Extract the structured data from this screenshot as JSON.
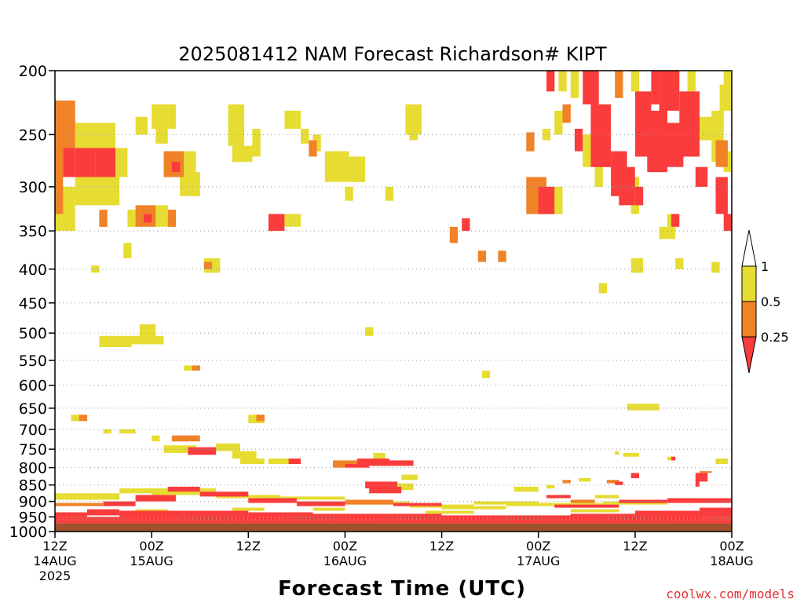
{
  "chart_data": {
    "type": "heatmap",
    "title": "2025081412 NAM Forecast Richardson# KIPT",
    "xlabel": "Forecast Time (UTC)",
    "ylabel": "",
    "y_scale": "log",
    "y_reversed": true,
    "y_ticks": [
      200,
      250,
      300,
      350,
      400,
      450,
      500,
      550,
      600,
      650,
      700,
      750,
      800,
      850,
      900,
      950,
      1000
    ],
    "y_gridlines_dotted": true,
    "x_ticks": [
      {
        "hour": 0,
        "line1": "12Z",
        "line2": "14AUG",
        "line3": "2025"
      },
      {
        "hour": 12,
        "line1": "00Z",
        "line2": "15AUG",
        "line3": ""
      },
      {
        "hour": 24,
        "line1": "12Z",
        "line2": "",
        "line3": ""
      },
      {
        "hour": 36,
        "line1": "00Z",
        "line2": "16AUG",
        "line3": ""
      },
      {
        "hour": 48,
        "line1": "12Z",
        "line2": "",
        "line3": ""
      },
      {
        "hour": 60,
        "line1": "00Z",
        "line2": "17AUG",
        "line3": ""
      },
      {
        "hour": 72,
        "line1": "12Z",
        "line2": "",
        "line3": ""
      },
      {
        "hour": 84,
        "line1": "00Z",
        "line2": "18AUG",
        "line3": ""
      }
    ],
    "xlim_hours": [
      0,
      84
    ],
    "ylim": [
      200,
      1000
    ],
    "legend": {
      "placement": "right",
      "levels": [
        {
          "label": "1",
          "value": 1,
          "color": "#ffffff"
        },
        {
          "label": "0.5",
          "value": 0.5,
          "color": "#e6dc32"
        },
        {
          "label": "0.25",
          "value": 0.25,
          "color": "#f08228"
        },
        {
          "label": "",
          "value": 0,
          "color": "#fa3c3c"
        }
      ]
    },
    "colors": {
      "low": "#fa3c3c",
      "mid": "#f08228",
      "high": "#e6dc32",
      "ground": "#a0522d"
    },
    "ground_band_p": [
      972,
      1000
    ],
    "cells_note_format": "[start_hour, end_hour, top_pressure_hPa, bottom_pressure_hPa, class] class: 1=Ri<0.25, 2=0.25-0.5, 3=0.5-1",
    "cells": [
      [
        0,
        2.5,
        222,
        262,
        2
      ],
      [
        0,
        1,
        262,
        330,
        2
      ],
      [
        1,
        2.5,
        262,
        290,
        1
      ],
      [
        2.5,
        5,
        262,
        290,
        1
      ],
      [
        5,
        7.5,
        262,
        290,
        1
      ],
      [
        2.5,
        7.5,
        240,
        262,
        3
      ],
      [
        2.5,
        8,
        290,
        320,
        3
      ],
      [
        0,
        2.5,
        300,
        350,
        3
      ],
      [
        7.5,
        9,
        262,
        290,
        3
      ],
      [
        0.5,
        2,
        230,
        250,
        3
      ],
      [
        5.5,
        6.5,
        325,
        345,
        2
      ],
      [
        8.5,
        9.5,
        365,
        385,
        3
      ],
      [
        4.5,
        5.5,
        395,
        405,
        3
      ],
      [
        9,
        10,
        325,
        345,
        3
      ],
      [
        10,
        12.5,
        320,
        345,
        2
      ],
      [
        11,
        12,
        330,
        340,
        1
      ],
      [
        12.5,
        14,
        320,
        345,
        3
      ],
      [
        14,
        15,
        325,
        345,
        2
      ],
      [
        12,
        13.5,
        225,
        245,
        3
      ],
      [
        13.5,
        15,
        225,
        245,
        3
      ],
      [
        10,
        11.5,
        235,
        250,
        3
      ],
      [
        12.5,
        14,
        245,
        258,
        3
      ],
      [
        13.5,
        16,
        265,
        290,
        2
      ],
      [
        14.5,
        15.5,
        275,
        285,
        1
      ],
      [
        16,
        17.5,
        265,
        290,
        3
      ],
      [
        17,
        18,
        285,
        310,
        3
      ],
      [
        15.5,
        17,
        290,
        310,
        3
      ],
      [
        21.5,
        23.5,
        225,
        260,
        3
      ],
      [
        22,
        24.5,
        260,
        275,
        3
      ],
      [
        24.5,
        25.5,
        245,
        270,
        3
      ],
      [
        28.5,
        30.5,
        230,
        245,
        3
      ],
      [
        30.5,
        31.5,
        245,
        258,
        3
      ],
      [
        31.5,
        32.5,
        255,
        270,
        2
      ],
      [
        32,
        33,
        250,
        265,
        3
      ],
      [
        26.5,
        28.5,
        330,
        350,
        1
      ],
      [
        28.5,
        29.5,
        330,
        345,
        3
      ],
      [
        29.5,
        30.5,
        330,
        345,
        3
      ],
      [
        18.5,
        20.5,
        385,
        405,
        3
      ],
      [
        18.5,
        19.5,
        390,
        400,
        2
      ],
      [
        33.5,
        36.5,
        265,
        295,
        3
      ],
      [
        36.5,
        38.5,
        270,
        295,
        3
      ],
      [
        36,
        37,
        300,
        315,
        3
      ],
      [
        41,
        42,
        300,
        315,
        3
      ],
      [
        43.5,
        45.5,
        225,
        250,
        3
      ],
      [
        44,
        45,
        240,
        255,
        3
      ],
      [
        49,
        50,
        345,
        365,
        2
      ],
      [
        50.5,
        51.5,
        335,
        350,
        1
      ],
      [
        5.5,
        9.5,
        505,
        525,
        3
      ],
      [
        9.5,
        13.5,
        505,
        520,
        3
      ],
      [
        10.5,
        12.5,
        485,
        510,
        3
      ],
      [
        16,
        18,
        560,
        570,
        3
      ],
      [
        17,
        18,
        560,
        570,
        2
      ],
      [
        38.5,
        39.5,
        490,
        505,
        3
      ],
      [
        2,
        3,
        665,
        680,
        3
      ],
      [
        3,
        4,
        665,
        680,
        2
      ],
      [
        6,
        7,
        700,
        710,
        3
      ],
      [
        8,
        10,
        700,
        710,
        3
      ],
      [
        12,
        13,
        715,
        730,
        3
      ],
      [
        14.5,
        18,
        715,
        730,
        2
      ],
      [
        13.5,
        17.5,
        740,
        760,
        3
      ],
      [
        16.5,
        20,
        745,
        765,
        1
      ],
      [
        20,
        23,
        735,
        755,
        3
      ],
      [
        22,
        25,
        755,
        775,
        3
      ],
      [
        23,
        26,
        775,
        790,
        3
      ],
      [
        26.5,
        30,
        775,
        790,
        3
      ],
      [
        29,
        30.5,
        775,
        790,
        1
      ],
      [
        24,
        26,
        665,
        685,
        3
      ],
      [
        25,
        26,
        665,
        680,
        2
      ],
      [
        34.5,
        38.5,
        780,
        800,
        2
      ],
      [
        36,
        39,
        790,
        800,
        1
      ],
      [
        37.5,
        41.5,
        775,
        795,
        1
      ],
      [
        39.5,
        41,
        760,
        775,
        3
      ],
      [
        40.5,
        44.5,
        780,
        795,
        1
      ],
      [
        38.5,
        42.5,
        840,
        860,
        1
      ],
      [
        39,
        43,
        855,
        875,
        1
      ],
      [
        42.5,
        44.5,
        845,
        865,
        3
      ],
      [
        43,
        45,
        820,
        835,
        3
      ],
      [
        55,
        56,
        375,
        390,
        2
      ],
      [
        58.5,
        61,
        290,
        330,
        2
      ],
      [
        60,
        62,
        300,
        330,
        1
      ],
      [
        61.5,
        63,
        300,
        330,
        3
      ],
      [
        58.5,
        59.5,
        248,
        265,
        2
      ],
      [
        60.5,
        61.5,
        245,
        255,
        3
      ],
      [
        62,
        63,
        230,
        250,
        3
      ],
      [
        61,
        62,
        200,
        215,
        1
      ],
      [
        62.5,
        63.5,
        200,
        215,
        3
      ],
      [
        64,
        65,
        200,
        220,
        3
      ],
      [
        63,
        64,
        225,
        240,
        2
      ],
      [
        64.5,
        65.5,
        245,
        265,
        1
      ],
      [
        65.5,
        66.5,
        250,
        280,
        3
      ],
      [
        65.5,
        67.5,
        200,
        225,
        1
      ],
      [
        66.5,
        69,
        225,
        280,
        1
      ],
      [
        67,
        69,
        240,
        275,
        1
      ],
      [
        67,
        68,
        280,
        300,
        3
      ],
      [
        69,
        71,
        265,
        310,
        1
      ],
      [
        70,
        72,
        280,
        320,
        1
      ],
      [
        72,
        73,
        300,
        320,
        1
      ],
      [
        71.5,
        72.5,
        290,
        330,
        3
      ],
      [
        69.5,
        70.5,
        200,
        220,
        2
      ],
      [
        71.5,
        72.5,
        200,
        215,
        3
      ],
      [
        72,
        74,
        215,
        270,
        1
      ],
      [
        73.5,
        76,
        230,
        285,
        1
      ],
      [
        74,
        75,
        200,
        225,
        1
      ],
      [
        75,
        77.5,
        200,
        230,
        1
      ],
      [
        76,
        77,
        245,
        265,
        2
      ],
      [
        76,
        78,
        240,
        280,
        1
      ],
      [
        77.5,
        80,
        215,
        270,
        1
      ],
      [
        78.5,
        79.5,
        200,
        215,
        3
      ],
      [
        80,
        81,
        235,
        255,
        3
      ],
      [
        79.5,
        81,
        280,
        300,
        1
      ],
      [
        82,
        83.5,
        290,
        330,
        1
      ],
      [
        81.5,
        83,
        230,
        250,
        3
      ],
      [
        82,
        83.5,
        255,
        280,
        2
      ],
      [
        83,
        84,
        265,
        285,
        3
      ],
      [
        83,
        84,
        330,
        350,
        1
      ],
      [
        81.5,
        83,
        230,
        275,
        3
      ],
      [
        82.5,
        84,
        210,
        230,
        3
      ],
      [
        83,
        84,
        200,
        210,
        3
      ],
      [
        81,
        82,
        235,
        255,
        3
      ],
      [
        81.5,
        82.5,
        390,
        405,
        3
      ],
      [
        76,
        77,
        330,
        345,
        3
      ],
      [
        76.5,
        77.5,
        330,
        345,
        1
      ],
      [
        77,
        78,
        385,
        400,
        3
      ],
      [
        71.5,
        73,
        385,
        405,
        3
      ],
      [
        67.5,
        68.5,
        420,
        435,
        3
      ],
      [
        75,
        77,
        345,
        360,
        3
      ],
      [
        71,
        75,
        640,
        655,
        3
      ],
      [
        53,
        54,
        570,
        585,
        3
      ],
      [
        52.5,
        53.5,
        375,
        390,
        2
      ],
      [
        63,
        64,
        835,
        845,
        2
      ],
      [
        65,
        66.5,
        830,
        840,
        3
      ],
      [
        68.5,
        70,
        835,
        845,
        2
      ],
      [
        71.5,
        72.5,
        815,
        830,
        1
      ],
      [
        69.5,
        70.5,
        840,
        850,
        1
      ],
      [
        79.5,
        81,
        815,
        840,
        1
      ],
      [
        80.5,
        81,
        820,
        830,
        2
      ],
      [
        79.5,
        80,
        835,
        855,
        1
      ],
      [
        80,
        81.5,
        810,
        815,
        2
      ],
      [
        82,
        83.5,
        775,
        790,
        3
      ],
      [
        76,
        77,
        770,
        780,
        3
      ],
      [
        76.5,
        77,
        770,
        780,
        1
      ],
      [
        71.5,
        72.5,
        760,
        770,
        3
      ],
      [
        69.5,
        70,
        755,
        765,
        3
      ],
      [
        70.5,
        71.5,
        760,
        770,
        3
      ],
      [
        57,
        60,
        855,
        870,
        3
      ],
      [
        58,
        60,
        860,
        870,
        3
      ],
      [
        61,
        62,
        850,
        860,
        3
      ],
      [
        61,
        64,
        880,
        890,
        1
      ],
      [
        64,
        67,
        895,
        905,
        2
      ],
      [
        67,
        70,
        880,
        890,
        3
      ],
      [
        0,
        84,
        960,
        972,
        1
      ],
      [
        0,
        84,
        950,
        960,
        1
      ],
      [
        0,
        4,
        935,
        950,
        1
      ],
      [
        4,
        8,
        925,
        945,
        1
      ],
      [
        8,
        16,
        930,
        955,
        1
      ],
      [
        16,
        24,
        930,
        955,
        1
      ],
      [
        24,
        32,
        935,
        955,
        1
      ],
      [
        32,
        40,
        940,
        955,
        1
      ],
      [
        40,
        48,
        940,
        960,
        1
      ],
      [
        48,
        56,
        945,
        960,
        1
      ],
      [
        56,
        64,
        945,
        960,
        1
      ],
      [
        64,
        72,
        940,
        960,
        1
      ],
      [
        72,
        80,
        930,
        955,
        1
      ],
      [
        80,
        84,
        920,
        950,
        1
      ],
      [
        0,
        6,
        905,
        915,
        2
      ],
      [
        6,
        10,
        900,
        915,
        1
      ],
      [
        10,
        15,
        880,
        900,
        1
      ],
      [
        14,
        18,
        855,
        870,
        1
      ],
      [
        18,
        24,
        870,
        885,
        1
      ],
      [
        24,
        30,
        890,
        905,
        1
      ],
      [
        30,
        36,
        900,
        915,
        1
      ],
      [
        36,
        42,
        895,
        910,
        2
      ],
      [
        42,
        48,
        905,
        915,
        1
      ],
      [
        48,
        56,
        915,
        925,
        3
      ],
      [
        56,
        62,
        905,
        915,
        3
      ],
      [
        62,
        70,
        910,
        920,
        1
      ],
      [
        70,
        76,
        895,
        905,
        1
      ],
      [
        76,
        84,
        890,
        905,
        1
      ],
      [
        0,
        8,
        875,
        895,
        3
      ],
      [
        8,
        12,
        860,
        875,
        3
      ],
      [
        12,
        20,
        860,
        880,
        3
      ],
      [
        20,
        28,
        880,
        890,
        3
      ],
      [
        28,
        36,
        885,
        895,
        3
      ],
      [
        36,
        44,
        900,
        910,
        3
      ],
      [
        44,
        52,
        910,
        920,
        3
      ],
      [
        52,
        60,
        900,
        910,
        3
      ],
      [
        60,
        68,
        905,
        915,
        3
      ],
      [
        68,
        76,
        900,
        910,
        3
      ],
      [
        1,
        4,
        940,
        955,
        3
      ],
      [
        10,
        14,
        925,
        935,
        3
      ],
      [
        22,
        26,
        920,
        930,
        3
      ],
      [
        32,
        36,
        920,
        930,
        3
      ],
      [
        46,
        52,
        930,
        940,
        3
      ],
      [
        64,
        70,
        925,
        935,
        3
      ]
    ],
    "label_marks": [],
    "credit": "coolwx.com/models"
  },
  "credit_text": "coolwx.com/models"
}
